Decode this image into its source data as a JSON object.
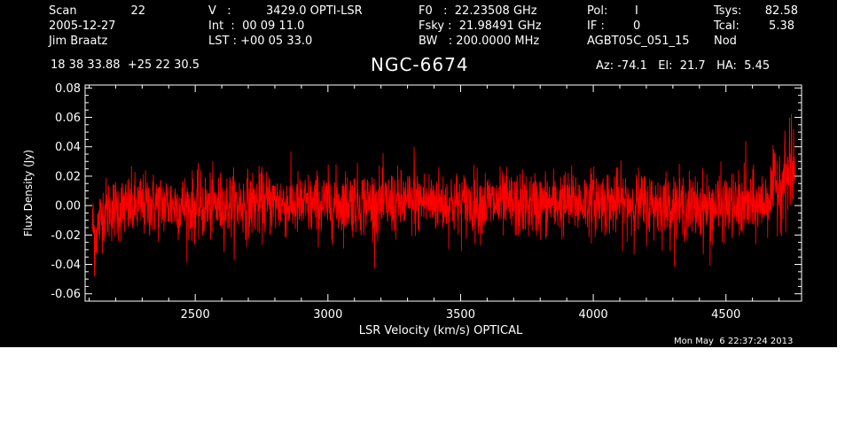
{
  "header": {
    "scan_label": "Scan",
    "scan_value": "22",
    "date": "2005-12-27",
    "observer": "Jim Braatz",
    "v_label": "V   :",
    "v_value": "3429.0 OPTI-LSR",
    "int_line": "Int  :  00 09 11.0",
    "lst_line": "LST : +00 05 33.0",
    "f0_line": "F0   :  22.23508 GHz",
    "fsky_line": "Fsky :  21.98491 GHz",
    "bw_line": "BW   : 200.0000 MHz",
    "pol_label": "Pol:",
    "pol_value": "I",
    "if_label": "IF :",
    "if_value": "0",
    "project": "AGBT05C_051_15",
    "tsys_label": "Tsys:",
    "tsys_value": "82.58",
    "tcal_label": "Tcal:",
    "tcal_value": "5.38",
    "mode": "Nod",
    "coords": "18 38 33.88  +25 22 30.5",
    "source": "NGC-6674",
    "az_el_ha": "Az: -74.1   El:  21.7   HA:  5.45"
  },
  "timestamp": "Mon May  6 22:37:24 2013",
  "colors": {
    "background": "#000000",
    "axes": "#ffffff",
    "trace": "#ff0000"
  },
  "chart_data": {
    "type": "line",
    "xlabel": "LSR Velocity (km/s) OPTICAL",
    "ylabel": "Flux Density (Jy)",
    "xlim": [
      2085,
      4785
    ],
    "ylim": [
      -0.065,
      0.082
    ],
    "x_ticks": [
      2500,
      3000,
      3500,
      4000,
      4500
    ],
    "y_ticks": [
      -0.06,
      -0.04,
      -0.02,
      0.0,
      0.02,
      0.04,
      0.06,
      0.08
    ],
    "y_tick_labels": [
      "-0.06",
      "-0.04",
      "-0.02",
      "0.00",
      "0.02",
      "0.04",
      "0.06",
      "0.08"
    ],
    "grid": false,
    "series": [
      {
        "color": "#ff0000",
        "x": [
          2112,
          2125,
          2150,
          2200,
          2300,
          2400,
          2500,
          2600,
          2700,
          2800,
          2900,
          3000,
          3100,
          3200,
          3300,
          3400,
          3500,
          3600,
          3700,
          3800,
          3900,
          4000,
          4100,
          4200,
          4300,
          4400,
          4500,
          4600,
          4650,
          4680,
          4700,
          4720,
          4740,
          4760
        ],
        "y": [
          -0.012,
          -0.02,
          -0.004,
          -0.002,
          0.0,
          0.001,
          -0.001,
          0.0,
          0.001,
          0.002,
          0.0,
          0.001,
          0.003,
          0.001,
          0.002,
          0.003,
          0.001,
          0.002,
          0.0,
          0.001,
          0.002,
          0.003,
          0.002,
          0.001,
          0.0,
          -0.001,
          0.0,
          -0.001,
          0.003,
          0.012,
          0.016,
          0.018,
          0.02,
          0.022
        ],
        "noise_rms": 0.011,
        "extremes": [
          {
            "x": 2120,
            "y": -0.048
          },
          {
            "x": 4740,
            "y": 0.06
          },
          {
            "x": 4755,
            "y": 0.052
          },
          {
            "x": 3325,
            "y": 0.04
          },
          {
            "x": 4575,
            "y": 0.044
          },
          {
            "x": 4440,
            "y": -0.041
          }
        ]
      }
    ]
  }
}
